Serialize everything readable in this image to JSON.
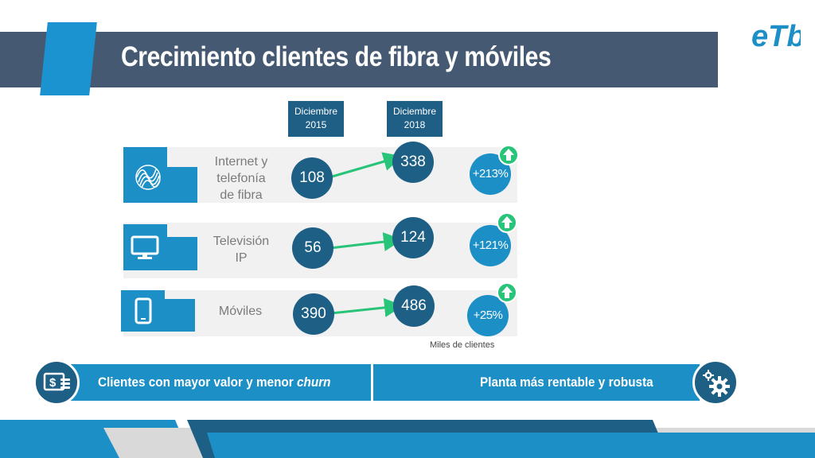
{
  "slide": {
    "title": "Crecimiento clientes de fibra y móviles",
    "logo_text": "eTb"
  },
  "columns": {
    "from_label_line1": "Diciembre",
    "from_label_line2": "2015",
    "to_label_line1": "Diciembre",
    "to_label_line2": "2018"
  },
  "rows": [
    {
      "label_lines": [
        "Internet y",
        "telefonía",
        "de fibra"
      ],
      "icon": "fiber-optic-icon",
      "value_2015": "108",
      "value_2018": "338",
      "growth": "+213%"
    },
    {
      "label_lines": [
        "Televisión",
        "IP"
      ],
      "icon": "tv-monitor-icon",
      "value_2015": "56",
      "value_2018": "124",
      "growth": "+121%"
    },
    {
      "label_lines": [
        "Móviles"
      ],
      "icon": "mobile-phone-icon",
      "value_2015": "390",
      "value_2018": "486",
      "growth": "+25%"
    }
  ],
  "footnote": "Miles de clientes",
  "banners": {
    "left_text": "Clientes con mayor valor y menor",
    "left_emphasis": "churn",
    "left_icon": "money-icon",
    "right_text": "Planta  más rentable y robusta",
    "right_icon": "gears-icon"
  },
  "colors": {
    "title_bar": "#455a72",
    "accent_blue": "#1b8fc6",
    "dark_blue": "#1e5f85",
    "green_arrow": "#28c47a"
  }
}
